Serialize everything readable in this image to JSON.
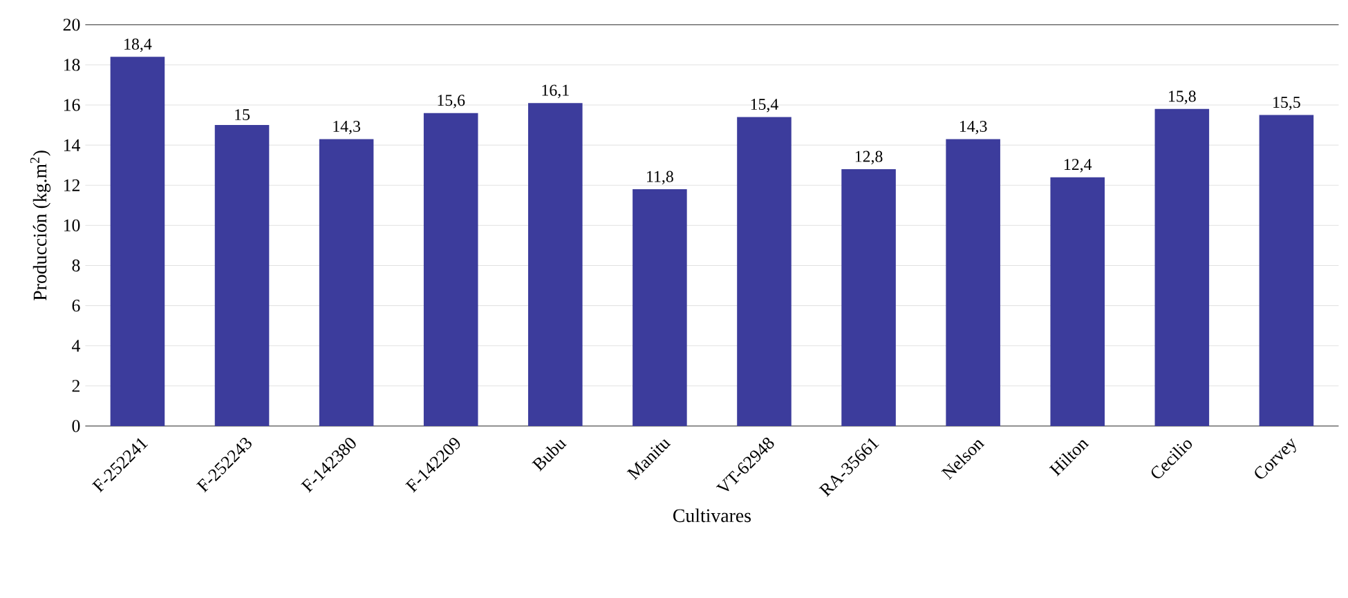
{
  "chart_data": {
    "type": "bar",
    "xlabel": "Cultivares",
    "ylabel": "Producción (kg.m$^{2}$)",
    "categories": [
      "F-252241",
      "F-252243",
      "F-142380",
      "F-142209",
      "Bubu",
      "Manitu",
      "VT-62948",
      "RA-35661",
      "Nelson",
      "Hilton",
      "Cecilio",
      "Corvey"
    ],
    "values": [
      18.4,
      15,
      14.3,
      15.6,
      16.1,
      11.8,
      15.4,
      12.8,
      14.3,
      12.4,
      15.8,
      15.5
    ],
    "value_labels": [
      "18,4",
      "15",
      "14,3",
      "15,6",
      "16,1",
      "11,8",
      "15,4",
      "12,8",
      "14,3",
      "12,4",
      "15,8",
      "15,5"
    ],
    "color": "#3c3c9c",
    "ylim": [
      0,
      20
    ],
    "yticks": [
      0,
      2,
      4,
      6,
      8,
      10,
      12,
      14,
      16,
      18,
      20
    ],
    "grid": "y"
  }
}
